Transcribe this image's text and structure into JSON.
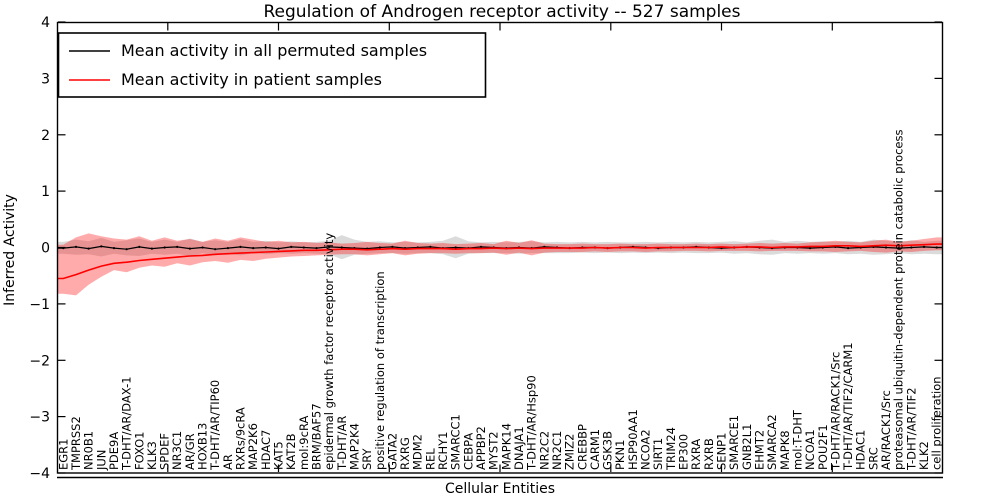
{
  "title": "Regulation of Androgen receptor activity -- 527 samples",
  "colors": {
    "permuted_line": "#000000",
    "patient_line": "#ff0000",
    "permuted_band": "rgba(0,0,0,0.14)",
    "patient_band": "rgba(255,0,0,0.33)",
    "frame": "#000000",
    "background": "#ffffff"
  },
  "chart_data": {
    "type": "line",
    "title": "Regulation of Androgen receptor activity -- 527 samples",
    "xlabel": "Cellular Entities",
    "ylabel": "Inferred Activity",
    "ylim": [
      -4,
      4
    ],
    "grid": false,
    "legend_position": "upper left",
    "y_ticks": [
      {
        "value": 4,
        "label": "4"
      },
      {
        "value": 3,
        "label": "3"
      },
      {
        "value": 2,
        "label": "2"
      },
      {
        "value": 1,
        "label": "1"
      },
      {
        "value": 0,
        "label": "0"
      },
      {
        "value": -1,
        "label": "−1"
      },
      {
        "value": -2,
        "label": "−2"
      },
      {
        "value": -3,
        "label": "−3"
      },
      {
        "value": -4,
        "label": "−4"
      }
    ],
    "categories": [
      "EGR1",
      "TMPRSS2",
      "NR0B1",
      "JUN",
      "PDE9A",
      "T-DHT/AR/DAX-1",
      "FOXO1",
      "KLK3",
      "SPDEF",
      "NR3C1",
      "AR/GR",
      "HOXB13",
      "T-DHT/AR/TIP60",
      "AR",
      "RXRs/9cRA",
      "MAP2K6",
      "HDAC7",
      "KAT5",
      "KAT2B",
      "mol:9cRA",
      "BRM/BAF57",
      "epidermal growth factor receptor activity",
      "T-DHT/AR",
      "MAP2K4",
      "SRY",
      "positive regulation of transcription",
      "GATA2",
      "RXRG",
      "MDM2",
      "REL",
      "RCHY1",
      "SMARCC1",
      "CEBPA",
      "APPBP2",
      "MYST2",
      "MAPK14",
      "DNAJA1",
      "T-DHT/AR/Hsp90",
      "NR2C2",
      "NR2C1",
      "ZMIZ2",
      "CREBBP",
      "CARM1",
      "GSK3B",
      "PKN1",
      "HSP90AA1",
      "NCOA2",
      "SIRT1",
      "TRIM24",
      "EP300",
      "RXRA",
      "RXRB",
      "SENP1",
      "SMARCE1",
      "GNB2L1",
      "EHMT2",
      "SMARCA2",
      "MAPK8",
      "mol:T-DHT",
      "NCOA1",
      "POU2F1",
      "T-DHT/AR/RACK1/Src",
      "T-DHT/AR/TIF2/CARM1",
      "HDAC1",
      "SRC",
      "AR/RACK1/Src",
      "proteasomal ubiquitin-dependent protein catabolic process",
      "T-DHT/AR/TIF2",
      "KLK2",
      "cell proliferation"
    ],
    "series": [
      {
        "name": "Mean activity in all permuted samples",
        "line_color": "#000000",
        "band_color": "rgba(0,0,0,0.14)",
        "mean": [
          -0.01,
          0.01,
          -0.02,
          0.02,
          -0.01,
          -0.03,
          0.01,
          -0.02,
          0.0,
          0.01,
          -0.02,
          0.0,
          -0.03,
          -0.01,
          0.01,
          -0.01,
          0.0,
          -0.02,
          0.01,
          0.0,
          -0.01,
          0.01,
          0.0,
          -0.01,
          -0.02,
          0.0,
          0.01,
          -0.01,
          0.0,
          0.01,
          -0.01,
          0.0,
          -0.01,
          0.01,
          0.0,
          -0.01,
          0.0,
          -0.01,
          0.01,
          0.0,
          -0.01,
          0.0,
          0.0,
          -0.01,
          0.0,
          0.01,
          0.0,
          -0.01,
          0.0,
          0.0,
          0.01,
          0.0,
          -0.01,
          0.0,
          0.01,
          0.0,
          -0.01,
          0.0,
          0.0,
          -0.01,
          0.0,
          0.01,
          -0.01,
          0.0,
          0.01,
          0.0,
          -0.01,
          0.0,
          0.01,
          0.0
        ],
        "band_upper": [
          0.1,
          0.14,
          0.11,
          0.17,
          0.1,
          0.13,
          0.16,
          0.1,
          0.14,
          0.1,
          0.16,
          0.1,
          0.13,
          0.1,
          0.15,
          0.1,
          0.12,
          0.09,
          0.11,
          0.09,
          0.1,
          0.12,
          0.22,
          0.14,
          0.1,
          0.11,
          0.09,
          0.1,
          0.09,
          0.1,
          0.12,
          0.2,
          0.11,
          0.09,
          0.1,
          0.09,
          0.1,
          0.11,
          0.09,
          0.1,
          0.09,
          0.1,
          0.09,
          0.1,
          0.09,
          0.09,
          0.1,
          0.09,
          0.1,
          0.09,
          0.1,
          0.09,
          0.1,
          0.11,
          0.09,
          0.12,
          0.14,
          0.1,
          0.12,
          0.1,
          0.11,
          0.1,
          0.12,
          0.1,
          0.14,
          0.12,
          0.1,
          0.13,
          0.1,
          0.12
        ],
        "band_lower": [
          -0.11,
          -0.13,
          -0.12,
          -0.16,
          -0.11,
          -0.14,
          -0.15,
          -0.11,
          -0.13,
          -0.11,
          -0.15,
          -0.1,
          -0.14,
          -0.11,
          -0.14,
          -0.1,
          -0.12,
          -0.1,
          -0.11,
          -0.1,
          -0.11,
          -0.12,
          -0.21,
          -0.13,
          -0.11,
          -0.1,
          -0.1,
          -0.11,
          -0.1,
          -0.1,
          -0.12,
          -0.19,
          -0.11,
          -0.1,
          -0.1,
          -0.1,
          -0.11,
          -0.1,
          -0.1,
          -0.1,
          -0.1,
          -0.09,
          -0.1,
          -0.09,
          -0.1,
          -0.09,
          -0.1,
          -0.09,
          -0.1,
          -0.09,
          -0.1,
          -0.1,
          -0.09,
          -0.11,
          -0.1,
          -0.12,
          -0.13,
          -0.1,
          -0.11,
          -0.1,
          -0.11,
          -0.1,
          -0.12,
          -0.11,
          -0.13,
          -0.12,
          -0.1,
          -0.12,
          -0.11,
          -0.12
        ]
      },
      {
        "name": "Mean activity in patient samples",
        "line_color": "#ff0000",
        "band_color": "rgba(255,0,0,0.33)",
        "mean": [
          -0.55,
          -0.48,
          -0.4,
          -0.33,
          -0.28,
          -0.26,
          -0.23,
          -0.21,
          -0.19,
          -0.17,
          -0.15,
          -0.14,
          -0.12,
          -0.11,
          -0.1,
          -0.09,
          -0.08,
          -0.07,
          -0.06,
          -0.05,
          -0.05,
          -0.04,
          -0.03,
          -0.03,
          -0.04,
          -0.03,
          -0.02,
          -0.03,
          -0.02,
          -0.02,
          -0.02,
          -0.03,
          -0.02,
          -0.02,
          -0.01,
          -0.02,
          -0.01,
          -0.02,
          -0.01,
          -0.01,
          -0.01,
          -0.01,
          0.0,
          -0.01,
          0.0,
          0.0,
          -0.01,
          0.0,
          0.0,
          0.0,
          0.0,
          0.0,
          0.01,
          0.0,
          0.01,
          0.01,
          0.0,
          0.01,
          0.01,
          0.02,
          0.02,
          0.03,
          0.03,
          0.02,
          0.03,
          0.04,
          0.03,
          0.04,
          0.05,
          0.06
        ],
        "band_upper": [
          0.05,
          0.18,
          0.25,
          0.2,
          0.16,
          0.14,
          0.2,
          0.12,
          0.18,
          0.12,
          0.15,
          0.1,
          0.16,
          0.12,
          0.18,
          0.14,
          0.1,
          0.12,
          0.09,
          0.1,
          0.08,
          0.09,
          0.07,
          0.08,
          0.1,
          0.08,
          0.07,
          0.12,
          0.08,
          0.07,
          0.08,
          0.06,
          0.07,
          0.08,
          0.06,
          0.12,
          0.08,
          0.13,
          0.07,
          0.06,
          0.06,
          0.07,
          0.06,
          0.06,
          0.07,
          0.06,
          0.06,
          0.07,
          0.06,
          0.06,
          0.07,
          0.06,
          0.07,
          0.06,
          0.07,
          0.08,
          0.07,
          0.08,
          0.07,
          0.09,
          0.1,
          0.12,
          0.1,
          0.09,
          0.12,
          0.14,
          0.1,
          0.12,
          0.15,
          0.18
        ],
        "band_lower": [
          -0.82,
          -0.85,
          -0.66,
          -0.52,
          -0.4,
          -0.44,
          -0.36,
          -0.32,
          -0.34,
          -0.28,
          -0.32,
          -0.26,
          -0.24,
          -0.27,
          -0.22,
          -0.24,
          -0.2,
          -0.18,
          -0.16,
          -0.15,
          -0.14,
          -0.13,
          -0.12,
          -0.12,
          -0.14,
          -0.12,
          -0.1,
          -0.14,
          -0.11,
          -0.1,
          -0.1,
          -0.11,
          -0.1,
          -0.1,
          -0.09,
          -0.13,
          -0.09,
          -0.14,
          -0.09,
          -0.08,
          -0.08,
          -0.08,
          -0.07,
          -0.08,
          -0.07,
          -0.07,
          -0.08,
          -0.07,
          -0.07,
          -0.06,
          -0.06,
          -0.07,
          -0.06,
          -0.06,
          -0.06,
          -0.07,
          -0.06,
          -0.06,
          -0.06,
          -0.07,
          -0.07,
          -0.08,
          -0.07,
          -0.06,
          -0.08,
          -0.09,
          -0.07,
          -0.08,
          -0.06,
          -0.05
        ]
      }
    ]
  }
}
